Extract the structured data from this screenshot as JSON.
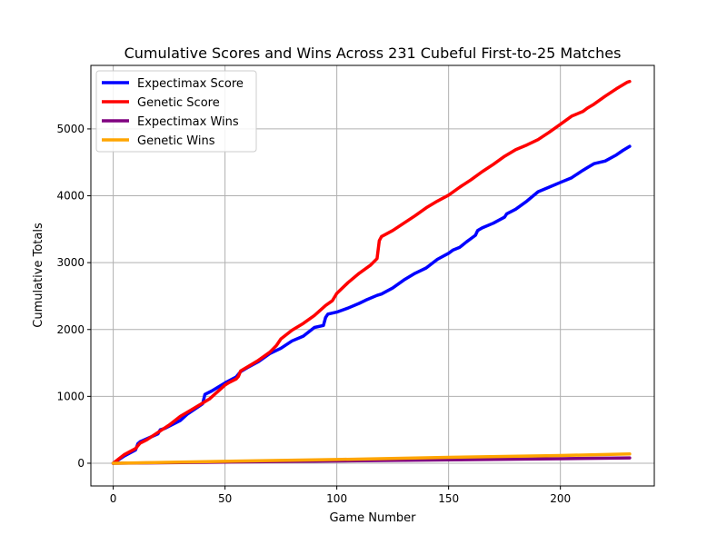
{
  "chart_data": {
    "type": "line",
    "title": "Cumulative Scores and Wins Across 231 Cubeful First-to-25 Matches",
    "xlabel": "Game Number",
    "ylabel": "Cumulative Totals",
    "xlim": [
      -10,
      242
    ],
    "ylim": [
      -340,
      5950
    ],
    "xticks": [
      0,
      50,
      100,
      150,
      200
    ],
    "xtick_labels": [
      "0",
      "50",
      "100",
      "150",
      "200"
    ],
    "yticks": [
      0,
      1000,
      2000,
      3000,
      4000,
      5000
    ],
    "ytick_labels": [
      "0",
      "1000",
      "2000",
      "3000",
      "4000",
      "5000"
    ],
    "grid": true,
    "legend_position": "top-left",
    "series": [
      {
        "name": "Expectimax Score",
        "color": "#0000ff",
        "x": [
          0,
          5,
          10,
          11,
          12,
          20,
          21,
          23,
          30,
          33,
          40,
          41,
          44,
          50,
          55,
          57,
          60,
          65,
          70,
          75,
          80,
          85,
          90,
          94,
          95,
          96,
          100,
          105,
          110,
          113,
          118,
          120,
          125,
          130,
          135,
          140,
          145,
          150,
          152,
          155,
          158,
          160,
          162,
          163,
          165,
          170,
          175,
          176,
          180,
          185,
          190,
          195,
          200,
          205,
          210,
          212,
          215,
          220,
          225,
          228,
          231
        ],
        "y": [
          0,
          110,
          200,
          290,
          320,
          440,
          500,
          520,
          640,
          730,
          890,
          1030,
          1080,
          1200,
          1290,
          1370,
          1430,
          1520,
          1640,
          1720,
          1830,
          1900,
          2030,
          2060,
          2180,
          2230,
          2260,
          2320,
          2390,
          2440,
          2510,
          2530,
          2620,
          2740,
          2840,
          2920,
          3050,
          3140,
          3190,
          3230,
          3310,
          3360,
          3410,
          3480,
          3520,
          3590,
          3680,
          3730,
          3800,
          3920,
          4060,
          4130,
          4200,
          4270,
          4380,
          4420,
          4480,
          4520,
          4610,
          4680,
          4740
        ]
      },
      {
        "name": "Genetic Score",
        "color": "#ff0000",
        "x": [
          0,
          5,
          10,
          12,
          15,
          20,
          25,
          30,
          35,
          40,
          43,
          46,
          50,
          52,
          55,
          56,
          57,
          60,
          65,
          70,
          73,
          75,
          80,
          85,
          90,
          95,
          98,
          100,
          105,
          110,
          115,
          118,
          119,
          120,
          125,
          130,
          135,
          140,
          145,
          150,
          155,
          160,
          165,
          170,
          175,
          180,
          185,
          190,
          195,
          200,
          205,
          210,
          212,
          215,
          220,
          225,
          230,
          231
        ],
        "y": [
          0,
          130,
          220,
          300,
          350,
          460,
          570,
          700,
          800,
          900,
          960,
          1050,
          1170,
          1210,
          1260,
          1300,
          1380,
          1440,
          1540,
          1660,
          1760,
          1860,
          1990,
          2090,
          2210,
          2360,
          2430,
          2540,
          2700,
          2840,
          2960,
          3060,
          3330,
          3390,
          3480,
          3590,
          3700,
          3820,
          3920,
          4010,
          4130,
          4240,
          4360,
          4470,
          4590,
          4690,
          4760,
          4840,
          4950,
          5070,
          5190,
          5260,
          5310,
          5370,
          5490,
          5600,
          5700,
          5710
        ]
      },
      {
        "name": "Expectimax Wins",
        "color": "#800080",
        "x": [
          0,
          50,
          100,
          150,
          200,
          231
        ],
        "y": [
          0,
          17,
          33,
          50,
          68,
          80
        ]
      },
      {
        "name": "Genetic Wins",
        "color": "#ffa500",
        "x": [
          0,
          50,
          100,
          150,
          200,
          231
        ],
        "y": [
          0,
          28,
          55,
          88,
          115,
          140
        ]
      }
    ]
  }
}
